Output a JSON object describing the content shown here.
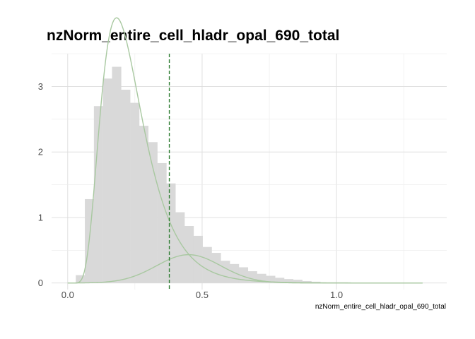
{
  "chart_data": {
    "type": "histogram",
    "title": "nzNorm_entire_cell_hladr_opal_690_total",
    "xlabel": "nzNorm_entire_cell_hladr_opal_690_total",
    "ylabel": "",
    "xlim": [
      -0.06,
      1.41
    ],
    "ylim": [
      -0.1,
      3.5
    ],
    "x_ticks": [
      0.0,
      0.5,
      1.0
    ],
    "x_tick_labels": [
      "0.0",
      "0.5",
      "1.0"
    ],
    "y_ticks": [
      0,
      1,
      2,
      3
    ],
    "y_tick_labels": [
      "0",
      "1",
      "2",
      "3"
    ],
    "grid": true,
    "histogram": {
      "bin_start": 0.03,
      "bin_width": 0.0337,
      "color": "#d9d9d9",
      "values": [
        0.12,
        1.28,
        2.7,
        3.12,
        3.3,
        2.95,
        2.75,
        2.4,
        2.15,
        1.83,
        1.52,
        1.08,
        0.87,
        0.72,
        0.55,
        0.46,
        0.34,
        0.29,
        0.24,
        0.18,
        0.14,
        0.11,
        0.08,
        0.06,
        0.05,
        0.03,
        0.02,
        0.01,
        0.01,
        0.01,
        0.005,
        0.004,
        0.003,
        0.002,
        0.002,
        0.001
      ]
    },
    "mixture_curves": [
      {
        "type": "lognormal",
        "weight": 0.87,
        "mu": -1.52,
        "sigma": 0.43,
        "color": "#a8c8a0"
      },
      {
        "type": "normal",
        "weight": 0.13,
        "mean": 0.45,
        "sd": 0.12,
        "color": "#a8c8a0"
      }
    ],
    "curve_x_range": [
      0.0,
      1.32
    ],
    "threshold": {
      "x": 0.378,
      "color": "#2e7d32",
      "style": "dashed"
    }
  }
}
